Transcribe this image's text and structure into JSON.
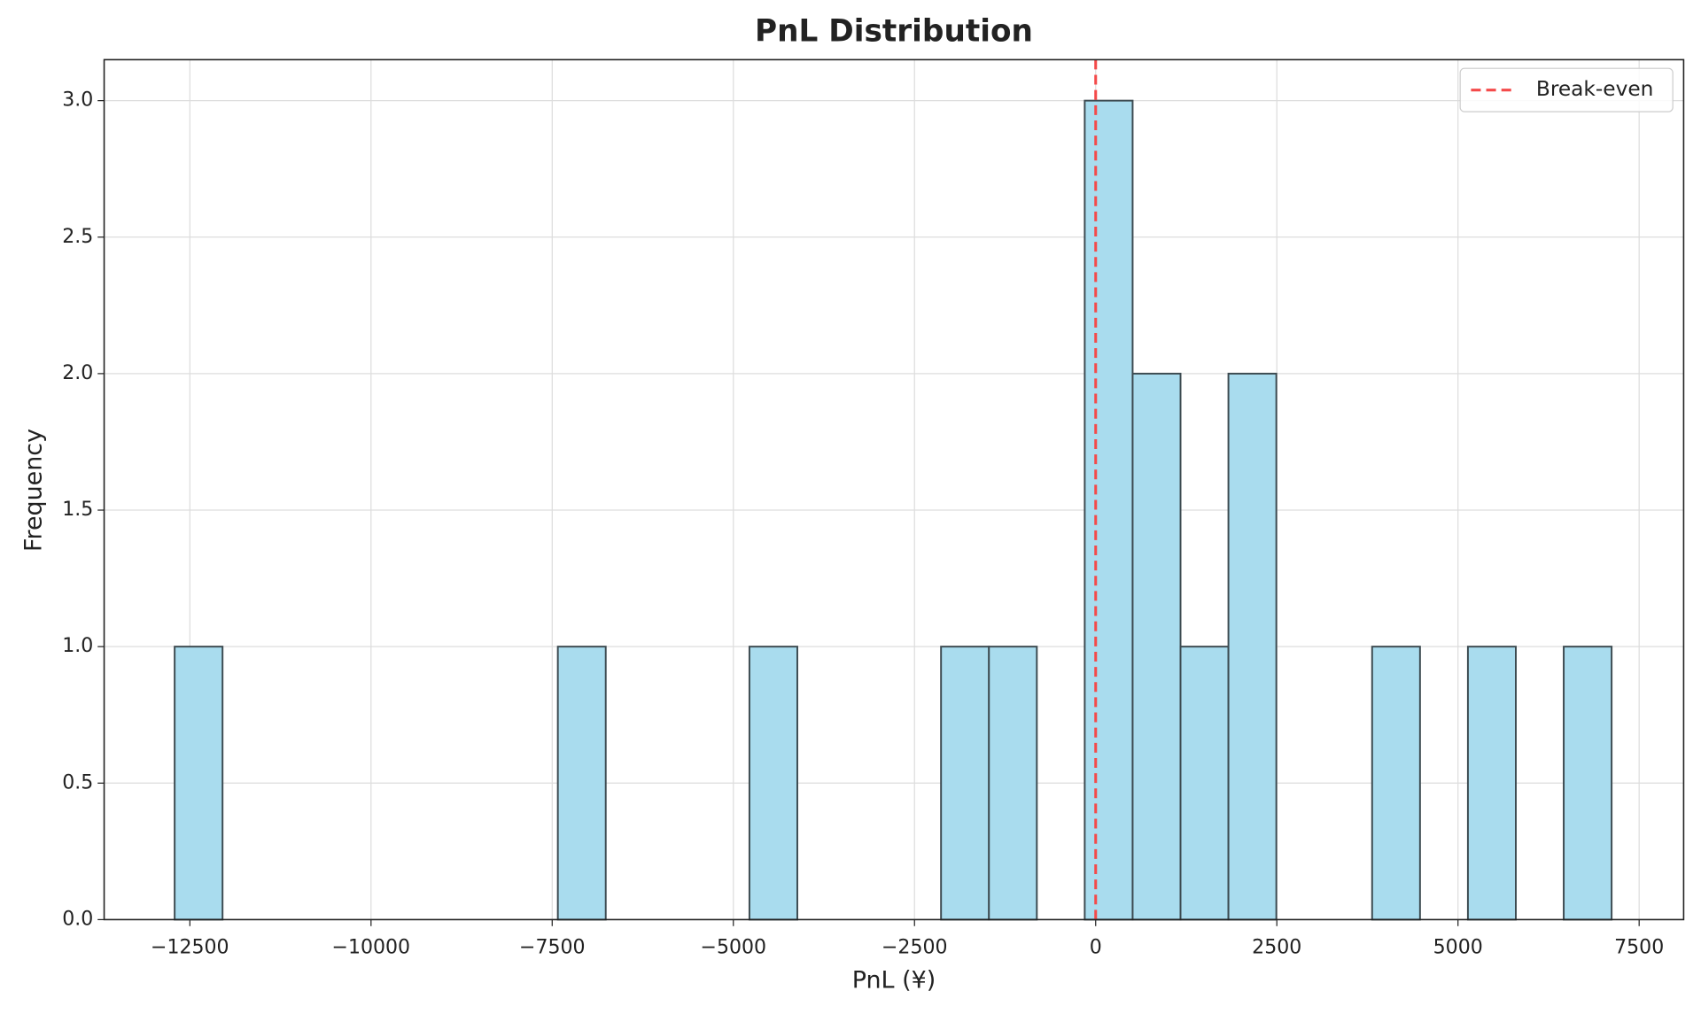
{
  "chart_data": {
    "type": "histogram",
    "title": "PnL Distribution",
    "xlabel": "PnL (¥)",
    "ylabel": "Frequency",
    "bins": [
      -12710,
      -12049,
      -11388,
      -10727,
      -10066,
      -9405,
      -8744,
      -8083,
      -7422,
      -6761,
      -6100,
      -5439,
      -4778,
      -4117,
      -3456,
      -2795,
      -2134,
      -1473,
      -812,
      -151,
      510,
      1171,
      1832,
      2493,
      3154,
      3815,
      4476,
      5137,
      5798,
      6459,
      7120
    ],
    "counts": [
      1,
      0,
      0,
      0,
      0,
      0,
      0,
      0,
      1,
      0,
      0,
      0,
      1,
      0,
      0,
      0,
      1,
      1,
      0,
      3,
      2,
      1,
      2,
      0,
      0,
      1,
      0,
      1,
      0,
      1
    ],
    "color": "#a9dcee",
    "edgecolor": "#3c4a50",
    "xlim": [
      -13683,
      8114
    ],
    "ylim": [
      0,
      3.15
    ],
    "xticks": [
      {
        "value": -12500,
        "label": "−12500"
      },
      {
        "value": -10000,
        "label": "−10000"
      },
      {
        "value": -7500,
        "label": "−7500"
      },
      {
        "value": -5000,
        "label": "−5000"
      },
      {
        "value": -2500,
        "label": "−2500"
      },
      0,
      2500,
      5000,
      7500
    ],
    "yticks": [
      {
        "value": 0,
        "label": "0.0"
      },
      {
        "value": 0.5,
        "label": "0.5"
      },
      {
        "value": 1,
        "label": "1.0"
      },
      {
        "value": 1.5,
        "label": "1.5"
      },
      {
        "value": 2,
        "label": "2.0"
      },
      {
        "value": 2.5,
        "label": "2.5"
      },
      {
        "value": 3,
        "label": "3.0"
      }
    ],
    "grid": true,
    "vline": {
      "x": 0,
      "label": "Break-even",
      "color": "#f44a4a"
    },
    "legend": "upper right"
  }
}
